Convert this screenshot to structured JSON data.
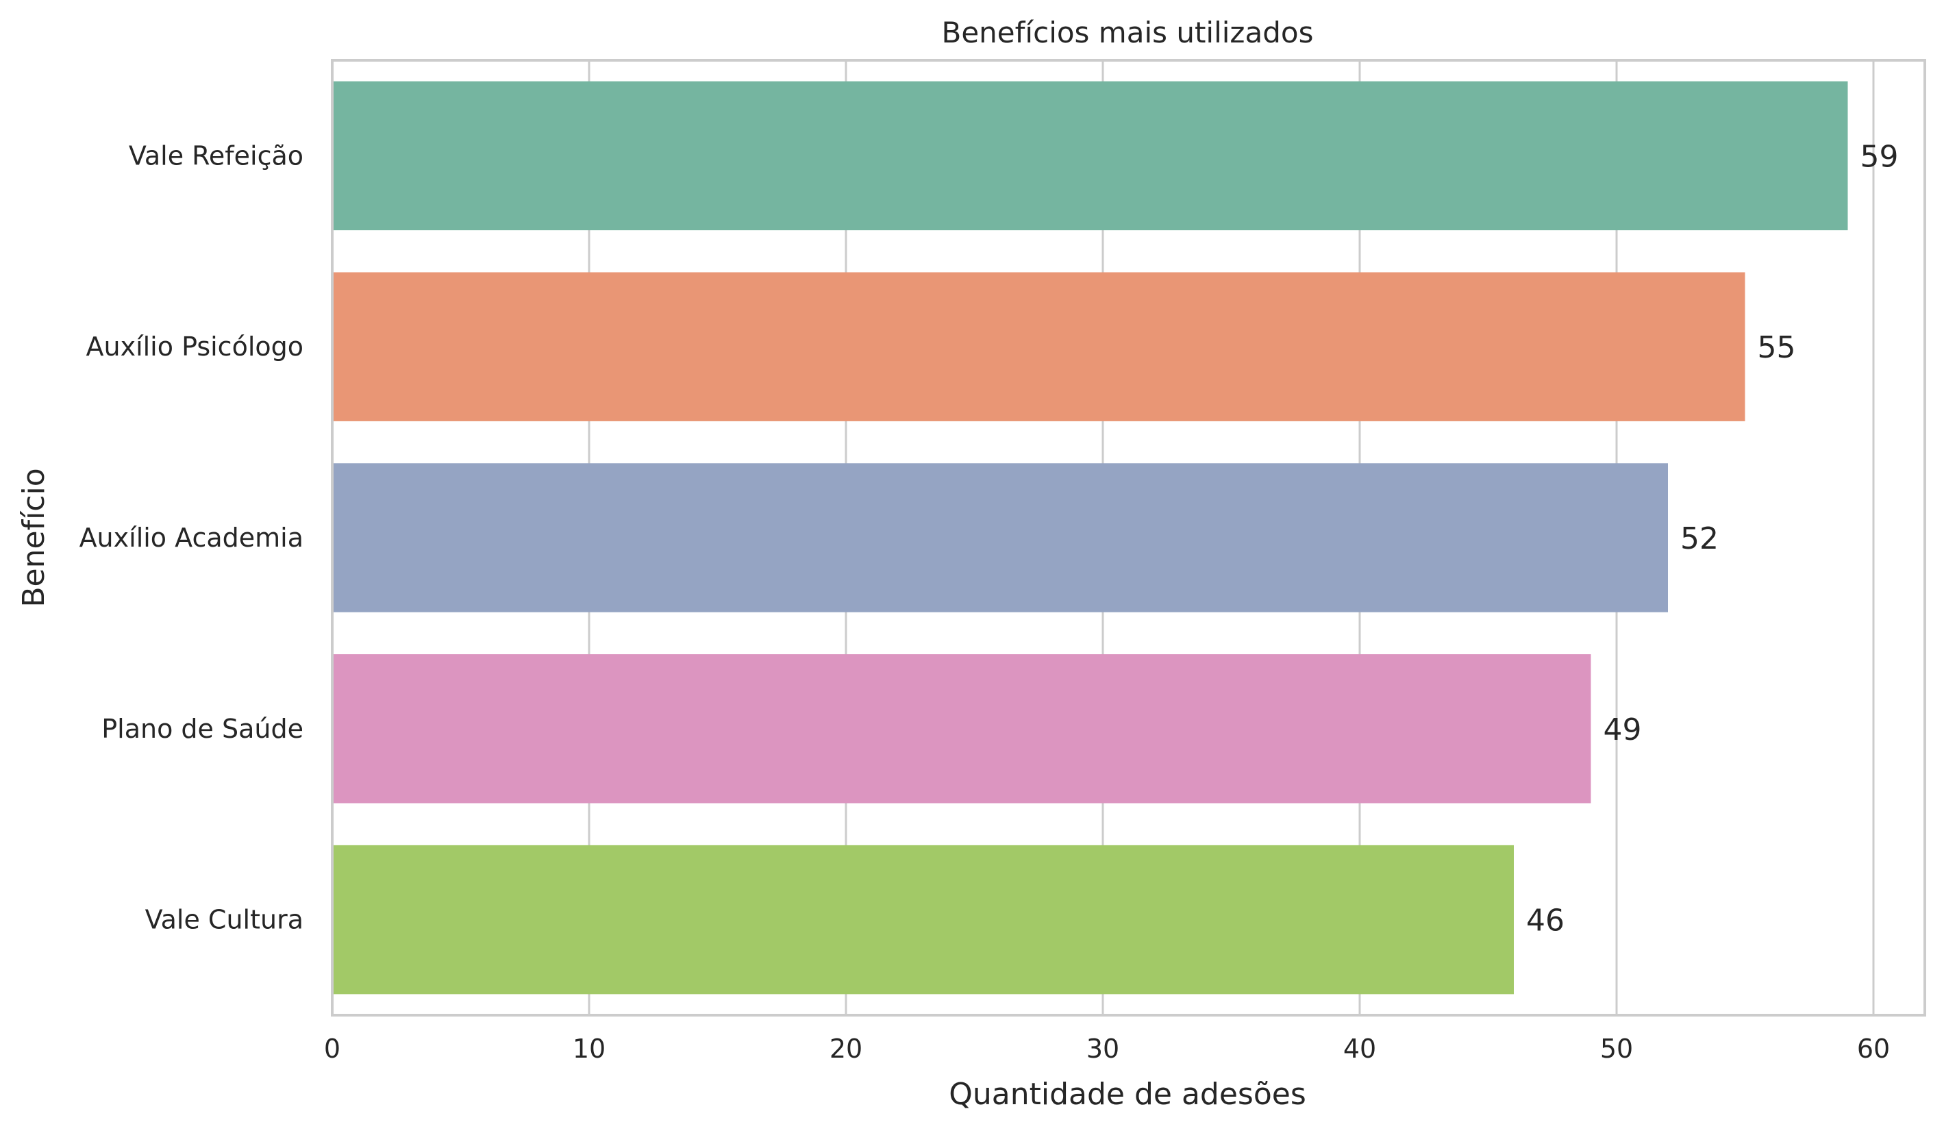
{
  "chart_data": {
    "type": "bar",
    "orientation": "horizontal",
    "title": "Benefícios mais utilizados",
    "xlabel": "Quantidade de adesões",
    "ylabel": "Benefício",
    "categories": [
      "Vale Refeição",
      "Auxílio Psicólogo",
      "Auxílio Academia",
      "Plano de Saúde",
      "Vale Cultura"
    ],
    "values": [
      59,
      55,
      52,
      49,
      46
    ],
    "data_labels": [
      "59",
      "55",
      "52",
      "49",
      "46"
    ],
    "colors": [
      "#75b5a0",
      "#e99675",
      "#95a4c3",
      "#dc95c0",
      "#a2c967"
    ],
    "xlim": [
      0,
      62
    ],
    "xticks": [
      0,
      10,
      20,
      30,
      40,
      50,
      60
    ],
    "xtick_labels": [
      "0",
      "10",
      "20",
      "30",
      "40",
      "50",
      "60"
    ],
    "grid": true,
    "legend": "none"
  }
}
